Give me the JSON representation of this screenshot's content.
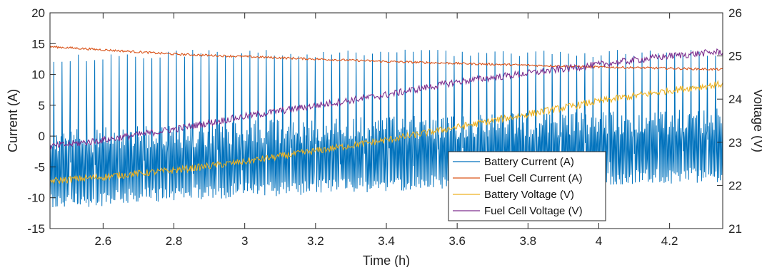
{
  "chart_data": {
    "type": "line",
    "title": "",
    "xlabel": "Time (h)",
    "ylabel_left": "Current (A)",
    "ylabel_right": "Voltage (V)",
    "xlim": [
      2.45,
      4.35
    ],
    "ylim_left": [
      -15,
      20
    ],
    "ylim_right": [
      21,
      26
    ],
    "grid": false,
    "legend_position": "bottom-right",
    "x_ticks": [
      2.6,
      2.8,
      3,
      3.2,
      3.4,
      3.6,
      3.8,
      4,
      4.2
    ],
    "x_tick_labels": [
      "2.6",
      "2.8",
      "3",
      "3.2",
      "3.4",
      "3.6",
      "3.8",
      "4",
      "4.2"
    ],
    "y_left_ticks": [
      -15,
      -10,
      -5,
      0,
      5,
      10,
      15,
      20
    ],
    "y_left_tick_labels": [
      "-15",
      "-10",
      "-5",
      "0",
      "5",
      "10",
      "15",
      "20"
    ],
    "y_right_ticks": [
      21,
      22,
      23,
      24,
      25,
      26
    ],
    "y_right_tick_labels": [
      "21",
      "22",
      "23",
      "24",
      "25",
      "26"
    ],
    "series": [
      {
        "name": "Battery Current (A)",
        "axis": "left",
        "color": "#0072BD",
        "description_points": {
          "x": [
            2.45,
            2.8,
            3.2,
            3.6,
            4.0,
            4.35
          ],
          "baseline_low": [
            -12,
            -10.5,
            -9.5,
            -8.5,
            -8,
            -7.5
          ],
          "baseline_high": [
            1,
            2,
            3,
            3.5,
            4,
            4.5
          ],
          "spike_peak": [
            13,
            14,
            14,
            14,
            14,
            14
          ]
        }
      },
      {
        "name": "Fuel Cell Current (A)",
        "axis": "left",
        "color": "#D95319",
        "x": [
          2.45,
          2.6,
          2.8,
          3.0,
          3.2,
          3.4,
          3.6,
          3.8,
          4.0,
          4.2,
          4.35
        ],
        "values": [
          14.5,
          14.0,
          13.3,
          12.9,
          12.5,
          12.1,
          11.8,
          11.5,
          11.2,
          11.0,
          10.8
        ]
      },
      {
        "name": "Battery Voltage (V)",
        "axis": "right",
        "color": "#EDB120",
        "x": [
          2.45,
          2.6,
          2.8,
          3.0,
          3.2,
          3.4,
          3.6,
          3.8,
          4.0,
          4.2,
          4.35
        ],
        "values": [
          22.1,
          22.2,
          22.35,
          22.55,
          22.8,
          23.05,
          23.35,
          23.65,
          23.95,
          24.2,
          24.35
        ]
      },
      {
        "name": "Fuel Cell Voltage (V)",
        "axis": "right",
        "color": "#7E2F8E",
        "x": [
          2.45,
          2.6,
          2.8,
          3.0,
          3.2,
          3.4,
          3.6,
          3.8,
          4.0,
          4.2,
          4.35
        ],
        "values": [
          22.9,
          23.05,
          23.3,
          23.6,
          23.85,
          24.1,
          24.4,
          24.6,
          24.8,
          25.0,
          25.1
        ]
      }
    ]
  }
}
